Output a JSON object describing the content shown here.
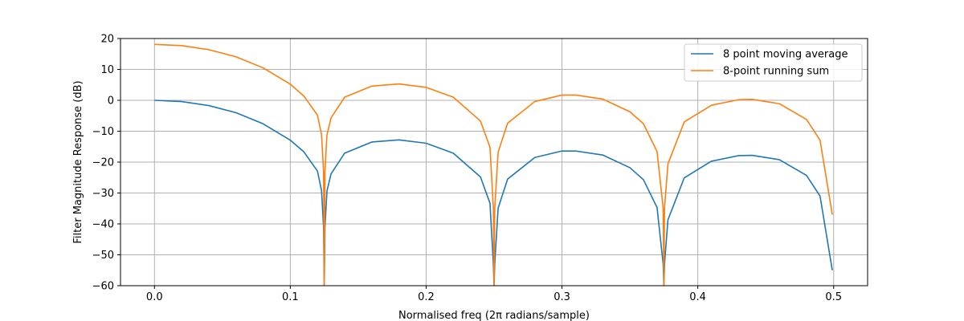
{
  "chart_data": {
    "type": "line",
    "title": "",
    "xlabel": "Normalised freq (2π radians/sample)",
    "ylabel": "Filter Magnitude Response (dB)",
    "xlim": [
      -0.025,
      0.525
    ],
    "ylim": [
      -60,
      20
    ],
    "xticks": [
      0.0,
      0.1,
      0.2,
      0.3,
      0.4,
      0.5
    ],
    "xtick_labels": [
      "0.0",
      "0.1",
      "0.2",
      "0.3",
      "0.4",
      "0.5"
    ],
    "yticks": [
      20,
      10,
      0,
      -10,
      -20,
      -30,
      -40,
      -50,
      -60
    ],
    "ytick_labels": [
      "20",
      "10",
      "0",
      "−10",
      "−20",
      "−30",
      "−40",
      "−50",
      "−60"
    ],
    "grid": true,
    "legend_position": "top-right",
    "x": [
      0.0,
      0.02,
      0.04,
      0.06,
      0.08,
      0.1,
      0.11,
      0.12,
      0.123,
      0.1245,
      0.125,
      0.1255,
      0.127,
      0.13,
      0.14,
      0.16,
      0.18,
      0.2,
      0.22,
      0.24,
      0.247,
      0.2495,
      0.25,
      0.2505,
      0.253,
      0.26,
      0.28,
      0.3,
      0.31,
      0.33,
      0.35,
      0.36,
      0.37,
      0.3745,
      0.375,
      0.3755,
      0.378,
      0.39,
      0.41,
      0.43,
      0.44,
      0.46,
      0.48,
      0.49,
      0.499
    ],
    "series": [
      {
        "name": "8 point moving average",
        "color": "#1f77b4",
        "y": [
          0.0,
          -0.4,
          -1.7,
          -4.0,
          -7.6,
          -12.9,
          -16.7,
          -22.9,
          -29.2,
          -41.2,
          -60,
          -41.2,
          -29.3,
          -23.8,
          -17.1,
          -13.5,
          -12.8,
          -13.9,
          -17.1,
          -24.8,
          -33.3,
          -53.0,
          -60,
          -53.0,
          -34.9,
          -25.5,
          -18.5,
          -16.4,
          -16.4,
          -17.7,
          -21.8,
          -25.7,
          -34.7,
          -53.0,
          -60,
          -53.0,
          -38.7,
          -25.1,
          -19.7,
          -17.9,
          -17.8,
          -19.2,
          -24.3,
          -31.0,
          -55.0
        ]
      },
      {
        "name": "8-point running sum",
        "color": "#ff7f0e",
        "y": [
          18.1,
          17.7,
          16.4,
          14.1,
          10.5,
          5.2,
          1.4,
          -4.8,
          -11.1,
          -23.1,
          -60,
          -23.1,
          -11.2,
          -5.7,
          1.0,
          4.6,
          5.3,
          4.2,
          1.0,
          -6.7,
          -15.2,
          -34.9,
          -60,
          -34.9,
          -16.8,
          -7.4,
          -0.4,
          1.7,
          1.7,
          0.4,
          -3.7,
          -7.6,
          -16.6,
          -34.9,
          -60,
          -34.9,
          -20.6,
          -7.0,
          -1.6,
          0.2,
          0.3,
          -1.1,
          -6.2,
          -12.9,
          -37.0
        ]
      }
    ]
  }
}
